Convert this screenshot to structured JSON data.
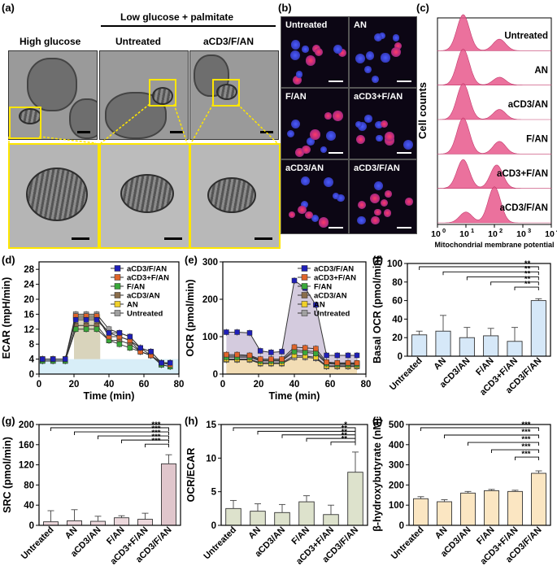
{
  "panels": {
    "a": {
      "label": "(a)",
      "group_title": "Low glucose + palmitate",
      "columns": [
        "High glucose",
        "Untreated",
        "aCD3/F/AN"
      ]
    },
    "b": {
      "label": "(b)",
      "tiles": [
        "Untreated",
        "AN",
        "F/AN",
        "aCD3+F/AN",
        "aCD3/AN",
        "aCD3/F/AN"
      ]
    },
    "c": {
      "label": "(c)",
      "ylabel": "Cell counts",
      "xlabel": "Mitochondrial membrane potential",
      "ticks": [
        "10",
        "10",
        "10",
        "10",
        "10"
      ],
      "tick_exps": [
        "0",
        "1",
        "2",
        "3",
        "4"
      ]
    },
    "d": {
      "label": "(d)"
    },
    "e": {
      "label": "(e)"
    },
    "f": {
      "label": "(f)"
    },
    "g": {
      "label": "(g)"
    },
    "h": {
      "label": "(h)"
    },
    "i": {
      "label": "(i)"
    }
  },
  "colors": {
    "aCD3/F/AN": "#1f1fb8",
    "aCD3+F/AN": "#e0642a",
    "F/AN": "#3aa83a",
    "aCD3/AN": "#8a6d4a",
    "AN": "#f0d02a",
    "Untreated": "#a0a0a0",
    "pink": "#e8588c"
  },
  "chart_data": [
    {
      "id": "c",
      "type": "area",
      "title": "",
      "xlabel": "Mitochondrial membrane potential",
      "ylabel": "Cell counts",
      "x_scale": "log",
      "xlim": [
        1,
        10000
      ],
      "series": [
        {
          "name": "Untreated",
          "peaks": [
            [
              8,
              1.0
            ],
            [
              150,
              0.32
            ]
          ]
        },
        {
          "name": "AN",
          "peaks": [
            [
              8,
              1.0
            ],
            [
              150,
              0.22
            ]
          ]
        },
        {
          "name": "aCD3/AN",
          "peaks": [
            [
              8,
              1.0
            ],
            [
              150,
              0.28
            ]
          ]
        },
        {
          "name": "F/AN",
          "peaks": [
            [
              8,
              1.0
            ],
            [
              150,
              0.35
            ]
          ]
        },
        {
          "name": "aCD3+F/AN",
          "peaks": [
            [
              8,
              0.8
            ],
            [
              120,
              0.65
            ]
          ]
        },
        {
          "name": "aCD3/F/AN",
          "peaks": [
            [
              10,
              0.3
            ],
            [
              100,
              1.0
            ]
          ]
        }
      ]
    },
    {
      "id": "d",
      "type": "line",
      "title": "",
      "xlabel": "Time (min)",
      "ylabel": "ECAR (mpH/min)",
      "xlim": [
        0,
        80
      ],
      "ylim": [
        0,
        30
      ],
      "xticks": [
        0,
        20,
        40,
        60,
        80
      ],
      "yticks": [
        0,
        4,
        8,
        12,
        16,
        20,
        24,
        28
      ],
      "x": [
        2,
        8,
        15,
        21,
        27,
        33,
        40,
        46,
        52,
        58,
        64,
        70,
        75
      ],
      "series": [
        {
          "name": "aCD3/F/AN",
          "values": [
            4,
            4,
            4,
            14.5,
            14.5,
            14.5,
            11,
            11,
            10,
            7,
            6,
            3,
            3
          ]
        },
        {
          "name": "aCD3+F/AN",
          "values": [
            4,
            4,
            4,
            15.5,
            15.5,
            15.5,
            10,
            10,
            9,
            6,
            5,
            3,
            2.5
          ]
        },
        {
          "name": "F/AN",
          "values": [
            3.5,
            3.5,
            3.5,
            12,
            12,
            12,
            9,
            8,
            7,
            6,
            5,
            2.5,
            2
          ]
        },
        {
          "name": "aCD3/AN",
          "values": [
            3.5,
            3.5,
            3.5,
            13,
            13,
            13,
            9,
            9,
            8,
            6,
            5,
            2.5,
            2
          ]
        },
        {
          "name": "AN",
          "values": [
            4,
            4,
            4,
            15,
            15,
            15,
            11,
            10,
            9,
            7,
            5,
            3,
            3
          ]
        },
        {
          "name": "Untreated",
          "values": [
            4,
            4,
            4,
            16,
            16,
            16,
            12,
            11,
            10,
            7,
            6,
            3,
            3
          ]
        }
      ]
    },
    {
      "id": "e",
      "type": "line",
      "title": "",
      "xlabel": "Time (min)",
      "ylabel": "OCR (pmol/min)",
      "xlim": [
        0,
        80
      ],
      "ylim": [
        0,
        300
      ],
      "xticks": [
        0,
        20,
        40,
        60,
        80
      ],
      "yticks": [
        0,
        100,
        200,
        300
      ],
      "x": [
        2,
        8,
        15,
        21,
        27,
        33,
        40,
        46,
        52,
        58,
        64,
        70,
        75
      ],
      "series": [
        {
          "name": "aCD3/F/AN",
          "values": [
            112,
            112,
            110,
            62,
            58,
            60,
            250,
            230,
            185,
            50,
            50,
            50,
            50
          ]
        },
        {
          "name": "aCD3+F/AN",
          "values": [
            52,
            52,
            50,
            40,
            40,
            40,
            72,
            70,
            68,
            32,
            30,
            30,
            30
          ]
        },
        {
          "name": "F/AN",
          "values": [
            45,
            45,
            45,
            35,
            35,
            35,
            60,
            58,
            55,
            28,
            26,
            26,
            26
          ]
        },
        {
          "name": "aCD3/AN",
          "values": [
            48,
            48,
            48,
            37,
            37,
            37,
            65,
            62,
            60,
            30,
            28,
            28,
            28
          ]
        },
        {
          "name": "AN",
          "values": [
            40,
            40,
            40,
            30,
            30,
            30,
            50,
            48,
            45,
            22,
            22,
            22,
            22
          ]
        },
        {
          "name": "Untreated",
          "values": [
            38,
            38,
            38,
            28,
            28,
            28,
            45,
            45,
            42,
            20,
            20,
            20,
            20
          ]
        }
      ]
    },
    {
      "id": "f",
      "type": "bar",
      "title": "",
      "ylabel": "Basal OCR (pmol/min)",
      "ylim": [
        0,
        100
      ],
      "yticks": [
        0,
        20,
        40,
        60,
        80,
        100
      ],
      "categories": [
        "Untreated",
        "AN",
        "aCD3/AN",
        "F/AN",
        "aCD3+F/AN",
        "aCD3/F/AN"
      ],
      "values": [
        23,
        27,
        20,
        22,
        16,
        60
      ],
      "errors": [
        4,
        17,
        11,
        8,
        15,
        2
      ],
      "significance": [
        "**",
        "**",
        "**",
        "**",
        "**"
      ]
    },
    {
      "id": "g",
      "type": "bar",
      "title": "",
      "ylabel": "SRC (pmol/min)",
      "ylim": [
        0,
        200
      ],
      "yticks": [
        0,
        40,
        80,
        120,
        160,
        200
      ],
      "categories": [
        "Untreated",
        "AN",
        "aCD3/AN",
        "F/AN",
        "aCD3+F/AN",
        "aCD3/F/AN"
      ],
      "values": [
        7,
        9,
        8,
        15,
        12,
        122
      ],
      "errors": [
        22,
        22,
        10,
        4,
        12,
        18
      ],
      "significance": [
        "***",
        "***",
        "***",
        "***",
        "***"
      ]
    },
    {
      "id": "h",
      "type": "bar",
      "title": "",
      "ylabel": "OCR/ECAR",
      "ylim": [
        0,
        15
      ],
      "yticks": [
        0,
        5,
        10,
        15
      ],
      "categories": [
        "Untreated",
        "AN",
        "aCD3/AN",
        "F/AN",
        "aCD3+F/AN",
        "aCD3/F/AN"
      ],
      "values": [
        2.5,
        2.1,
        1.9,
        3.5,
        1.6,
        7.9
      ],
      "errors": [
        1.2,
        1.1,
        1.2,
        0.9,
        1.4,
        3.0
      ],
      "significance": [
        "*",
        "**",
        "**",
        "**",
        "**"
      ]
    },
    {
      "id": "i",
      "type": "bar",
      "title": "",
      "ylabel": "β-hydroxybutyrate (nM)",
      "ylim": [
        0,
        500
      ],
      "yticks": [
        0,
        100,
        200,
        300,
        400,
        500
      ],
      "categories": [
        "Untreated",
        "AN",
        "aCD3/AN",
        "F/AN",
        "aCD3+F/AN",
        "aCD3/F/AN"
      ],
      "values": [
        132,
        117,
        160,
        172,
        168,
        258
      ],
      "errors": [
        10,
        10,
        8,
        6,
        6,
        12
      ],
      "significance": [
        "***",
        "***",
        "***",
        "***",
        "***"
      ]
    }
  ]
}
